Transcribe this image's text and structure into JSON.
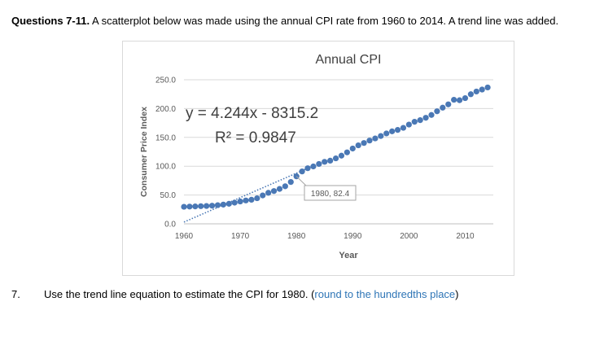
{
  "header": {
    "bold_prefix": "Questions 7-11.",
    "text": "A scatterplot below was made using the annual CPI rate from 1960 to 2014. A trend line was added."
  },
  "question": {
    "number": "7.",
    "text": "Use the trend line equation to estimate the CPI for 1980. (",
    "hint": "round to the hundredths place",
    "close": ")"
  },
  "colors": {
    "points": "#4a78b5",
    "trend": "#4a78b5",
    "grid": "#d9d9d9",
    "axis_text": "#595959"
  },
  "chart_data": {
    "type": "scatter",
    "title": "Annual CPI",
    "xlabel": "Year",
    "ylabel": "Consumer Price Index",
    "xlim": [
      1960,
      2015
    ],
    "ylim": [
      0,
      250
    ],
    "x_ticks": [
      1960,
      1970,
      1980,
      1990,
      2000,
      2010
    ],
    "y_ticks": [
      "0.0",
      "50.0",
      "100.0",
      "150.0",
      "200.0",
      "250.0"
    ],
    "grid": "horizontal",
    "equation": "y = 4.244x - 8315.2",
    "r_squared": "R² = 0.9847",
    "annotation": {
      "x": 1980,
      "y": 82.4,
      "label": "1980, 82.4"
    },
    "trendline": {
      "slope": 4.244,
      "intercept": -8315.2
    },
    "x": [
      1960,
      1961,
      1962,
      1963,
      1964,
      1965,
      1966,
      1967,
      1968,
      1969,
      1970,
      1971,
      1972,
      1973,
      1974,
      1975,
      1976,
      1977,
      1978,
      1979,
      1980,
      1981,
      1982,
      1983,
      1984,
      1985,
      1986,
      1987,
      1988,
      1989,
      1990,
      1991,
      1992,
      1993,
      1994,
      1995,
      1996,
      1997,
      1998,
      1999,
      2000,
      2001,
      2002,
      2003,
      2004,
      2005,
      2006,
      2007,
      2008,
      2009,
      2010,
      2011,
      2012,
      2013,
      2014
    ],
    "y": [
      29.6,
      29.9,
      30.2,
      30.6,
      31.0,
      31.5,
      32.4,
      33.4,
      34.8,
      36.7,
      38.8,
      40.5,
      41.8,
      44.4,
      49.3,
      53.8,
      56.9,
      60.6,
      65.2,
      72.6,
      82.4,
      90.9,
      96.5,
      99.6,
      103.9,
      107.6,
      109.6,
      113.6,
      118.3,
      124.0,
      130.7,
      136.2,
      140.3,
      144.5,
      148.2,
      152.4,
      156.9,
      160.5,
      163.0,
      166.6,
      172.2,
      177.1,
      179.9,
      184.0,
      188.9,
      195.3,
      201.6,
      207.3,
      215.3,
      214.5,
      218.1,
      224.9,
      229.6,
      233.0,
      236.7
    ]
  }
}
